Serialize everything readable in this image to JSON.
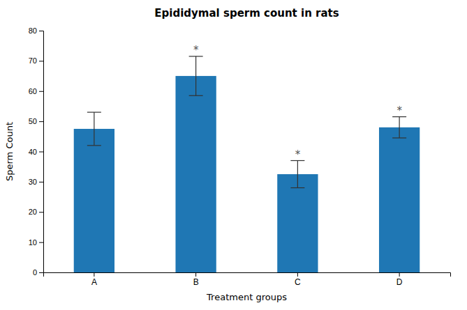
{
  "chart_data": {
    "type": "bar",
    "title": "Epididymal sperm count in rats",
    "xlabel": "Treatment groups",
    "ylabel": "Sperm Count",
    "categories": [
      "A",
      "B",
      "C",
      "D"
    ],
    "values": [
      47.5,
      65.0,
      32.5,
      48.0
    ],
    "errors": [
      5.5,
      6.5,
      4.5,
      3.5
    ],
    "ylim": [
      0,
      80
    ],
    "yticks": [
      0,
      10,
      20,
      30,
      40,
      50,
      60,
      70,
      80
    ],
    "grid": false,
    "annotations": [
      {
        "category": "B",
        "text": "*"
      },
      {
        "category": "C",
        "text": "*"
      },
      {
        "category": "D",
        "text": "*"
      }
    ]
  }
}
